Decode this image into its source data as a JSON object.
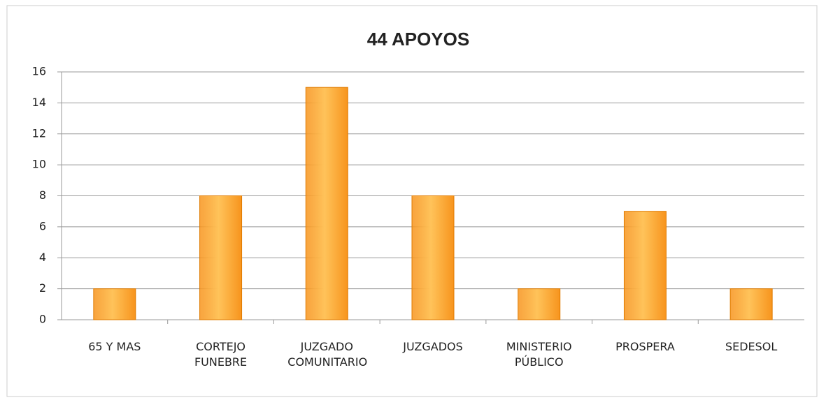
{
  "chart_data": {
    "type": "bar",
    "title": "44 APOYOS",
    "categories": [
      "65 Y MAS",
      "CORTEJO FUNEBRE",
      "JUZGADO COMUNITARIO",
      "JUZGADOS",
      "MINISTERIO PÚBLICO",
      "PROSPERA",
      "SEDESOL"
    ],
    "values": [
      2,
      8,
      15,
      8,
      2,
      7,
      2
    ],
    "color": "#f7941d",
    "ylim": [
      0,
      16
    ],
    "yticks": [
      0,
      2,
      4,
      6,
      8,
      10,
      12,
      14,
      16
    ],
    "grid": true
  }
}
